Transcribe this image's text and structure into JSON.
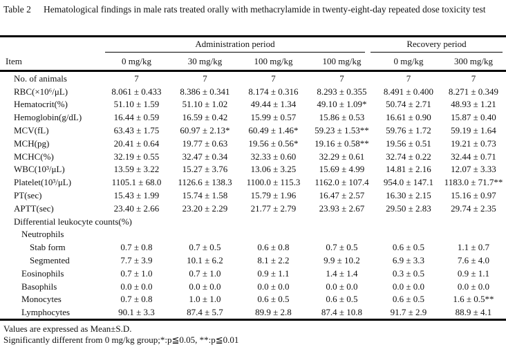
{
  "caption": {
    "label": "Table 2",
    "title": "Hematological findings in male rats treated orally with methacrylamide in twenty-eight-day repeated dose toxicity test"
  },
  "header": {
    "item_label": "Item",
    "groups": [
      {
        "label": "Administration period"
      },
      {
        "label": "Recovery period"
      }
    ],
    "doses": [
      "0 mg/kg",
      "30 mg/kg",
      "100 mg/kg",
      "100 mg/kg",
      "0 mg/kg",
      "300 mg/kg"
    ]
  },
  "rows": [
    {
      "label": "No. of animals",
      "indent": 0,
      "values": [
        "7",
        "7",
        "7",
        "7",
        "7",
        "7"
      ]
    },
    {
      "label": "RBC(×10⁶/μL)",
      "indent": 0,
      "values": [
        "8.061 ± 0.433",
        "8.386 ± 0.341",
        "8.174 ± 0.316",
        "8.293 ± 0.355",
        "8.491 ± 0.400",
        "8.271 ± 0.349"
      ]
    },
    {
      "label": "Hematocrit(%)",
      "indent": 0,
      "values": [
        "51.10 ± 1.59",
        "51.10 ± 1.02",
        "49.44 ± 1.34",
        "49.10 ± 1.09*",
        "50.74 ± 2.71",
        "48.93 ± 1.21"
      ]
    },
    {
      "label": "Hemoglobin(g/dL)",
      "indent": 0,
      "values": [
        "16.44 ± 0.59",
        "16.59 ± 0.42",
        "15.99 ± 0.57",
        "15.86 ± 0.53",
        "16.61 ± 0.90",
        "15.87 ± 0.40"
      ]
    },
    {
      "label": "MCV(fL)",
      "indent": 0,
      "values": [
        "63.43 ± 1.75",
        "60.97 ± 2.13*",
        "60.49 ± 1.46*",
        "59.23 ± 1.53**",
        "59.76 ± 1.72",
        "59.19 ± 1.64"
      ]
    },
    {
      "label": "MCH(pg)",
      "indent": 0,
      "values": [
        "20.41 ± 0.64",
        "19.77 ± 0.63",
        "19.56 ± 0.56*",
        "19.16 ± 0.58**",
        "19.56 ± 0.51",
        "19.21 ± 0.73"
      ]
    },
    {
      "label": "MCHC(%)",
      "indent": 0,
      "values": [
        "32.19 ± 0.55",
        "32.47 ± 0.34",
        "32.33 ± 0.60",
        "32.29 ± 0.61",
        "32.74 ± 0.22",
        "32.44 ± 0.71"
      ]
    },
    {
      "label": "WBC(10³/μL)",
      "indent": 0,
      "values": [
        "13.59 ± 3.22",
        "15.27 ± 3.76",
        "13.06 ± 3.25",
        "15.69 ± 4.99",
        "14.81 ± 2.16",
        "12.07 ± 3.33"
      ]
    },
    {
      "label": "Platelet(10³/μL)",
      "indent": 0,
      "values": [
        "1105.1 ± 68.0",
        "1126.6 ± 138.3",
        "1100.0 ± 115.3",
        "1162.0 ± 107.4",
        "954.0 ± 147.1",
        "1183.0 ± 71.7**"
      ]
    },
    {
      "label": "PT(sec)",
      "indent": 0,
      "values": [
        "15.43 ± 1.99",
        "15.74 ± 1.58",
        "15.79 ± 1.96",
        "16.47 ± 2.57",
        "16.30 ± 2.15",
        "15.16 ± 0.97"
      ]
    },
    {
      "label": "APTT(sec)",
      "indent": 0,
      "values": [
        "23.40 ± 2.66",
        "23.20 ± 2.29",
        "21.77 ± 2.79",
        "23.93 ± 2.67",
        "29.50 ± 2.83",
        "29.74 ± 2.35"
      ]
    },
    {
      "label": "Differential leukocyte counts(%)",
      "indent": 0,
      "values": []
    },
    {
      "label": "Neutrophils",
      "indent": 1,
      "values": []
    },
    {
      "label": "Stab form",
      "indent": 2,
      "values": [
        "0.7 ± 0.8",
        "0.7 ± 0.5",
        "0.6 ± 0.8",
        "0.7 ± 0.5",
        "0.6 ± 0.5",
        "1.1 ± 0.7"
      ]
    },
    {
      "label": "Segmented",
      "indent": 2,
      "values": [
        "7.7 ± 3.9",
        "10.1 ± 6.2",
        "8.1 ± 2.2",
        "9.9 ± 10.2",
        "6.9 ± 3.3",
        "7.6 ± 4.0"
      ]
    },
    {
      "label": "Eosinophils",
      "indent": 1,
      "values": [
        "0.7 ± 1.0",
        "0.7 ± 1.0",
        "0.9 ± 1.1",
        "1.4 ± 1.4",
        "0.3 ± 0.5",
        "0.9 ± 1.1"
      ]
    },
    {
      "label": "Basophils",
      "indent": 1,
      "values": [
        "0.0 ± 0.0",
        "0.0 ± 0.0",
        "0.0 ± 0.0",
        "0.0 ± 0.0",
        "0.0 ± 0.0",
        "0.0 ± 0.0"
      ]
    },
    {
      "label": "Monocytes",
      "indent": 1,
      "values": [
        "0.7 ± 0.8",
        "1.0 ± 1.0",
        "0.6 ± 0.5",
        "0.6 ± 0.5",
        "0.6 ± 0.5",
        "1.6 ± 0.5**"
      ]
    },
    {
      "label": "Lymphocytes",
      "indent": 1,
      "values": [
        "90.1 ± 3.3",
        "87.4 ± 5.7",
        "89.9 ± 2.8",
        "87.4 ± 10.8",
        "91.7 ± 2.9",
        "88.9 ± 4.1"
      ]
    }
  ],
  "footnotes": [
    "Values are expressed as Mean±S.D.",
    "Significantly different from 0 mg/kg group;*:p≦0.05, **:p≦0.01"
  ],
  "colors": {
    "text": "#111111",
    "background": "#ffffff",
    "rule": "#000000"
  }
}
